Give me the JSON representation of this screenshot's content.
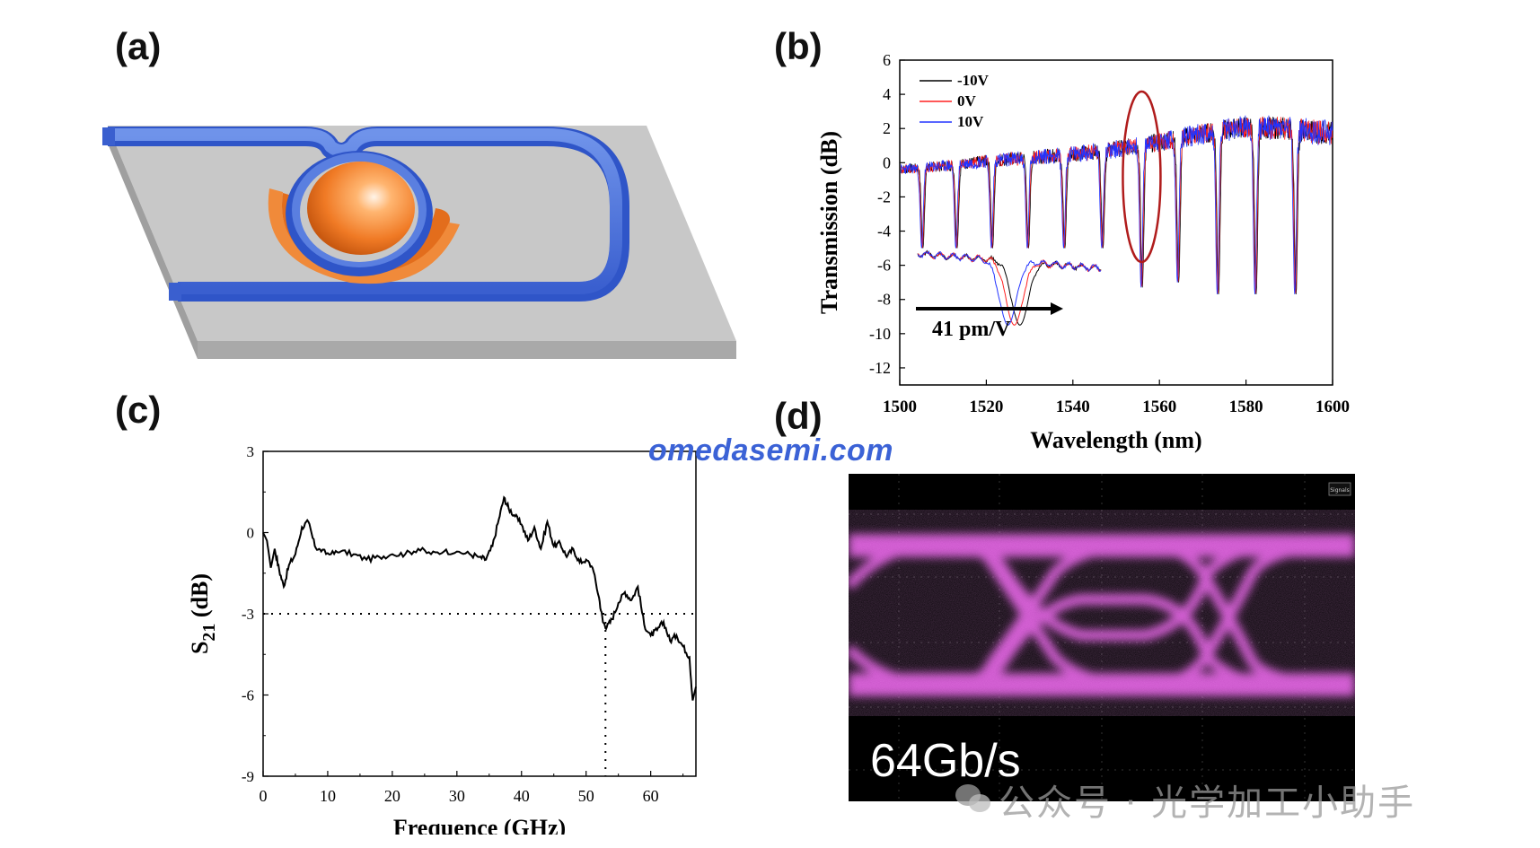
{
  "labels": {
    "a": "(a)",
    "b": "(b)",
    "c": "(c)",
    "d": "(d)"
  },
  "watermark": {
    "url": "omedasemi.com",
    "wechat_text": "公众号 · 光学加工小助手"
  },
  "panel_b": {
    "chart_data": {
      "type": "line",
      "xlabel": "Wavelength (nm)",
      "ylabel": "Transmission (dB)",
      "xlim": [
        1500,
        1600
      ],
      "ylim": [
        -13,
        6
      ],
      "xticks": [
        1500,
        1520,
        1540,
        1560,
        1580,
        1600
      ],
      "yticks": [
        6,
        4,
        2,
        0,
        -2,
        -4,
        -6,
        -8,
        -10,
        -12
      ],
      "series": [
        {
          "name": "-10V",
          "color": "#000000"
        },
        {
          "name": "0V",
          "color": "#ff2020"
        },
        {
          "name": "10V",
          "color": "#2233ff"
        }
      ],
      "resonance_dips_nm": [
        1505.2,
        1513.1,
        1521.3,
        1529.6,
        1538.0,
        1546.8,
        1555.9,
        1564.3,
        1573.5,
        1582.2,
        1591.4
      ],
      "dip_depth_db": [
        -5.0,
        -5.0,
        -5.0,
        -5.0,
        -5.0,
        -5.0,
        -7.3,
        -7.0,
        -7.7,
        -7.7,
        -7.7
      ],
      "baseline_db": [
        -0.4,
        -0.2,
        0.1,
        0.3,
        0.5,
        0.8,
        1.2,
        1.7,
        2.1,
        2.0,
        1.7
      ],
      "inset_annotation": "41 pm/V",
      "highlight_ellipse_center_nm": 1555.9
    }
  },
  "panel_c": {
    "chart_data": {
      "type": "line",
      "xlabel": "Frequence (GHz)",
      "ylabel_main": "S",
      "ylabel_sub": "21",
      "ylabel_unit": " (dB)",
      "xlim": [
        0,
        67
      ],
      "ylim": [
        -9,
        3
      ],
      "xticks": [
        0,
        10,
        20,
        30,
        40,
        50,
        60
      ],
      "yticks": [
        3,
        0,
        -3,
        -6,
        -9
      ],
      "cutoff_ghz": 53,
      "cutoff_db": -3,
      "x": [
        0,
        0.6,
        1.2,
        1.8,
        2.5,
        3.2,
        4.0,
        5.0,
        6.0,
        7.0,
        8.0,
        9.0,
        10.5,
        12,
        14,
        16,
        18,
        20,
        22,
        24,
        26,
        28,
        30,
        32,
        33.5,
        34.5,
        35.5,
        36.5,
        37.3,
        38.0,
        39.0,
        40.0,
        41.0,
        42.0,
        43.0,
        44.0,
        45.0,
        46.0,
        47.0,
        48.0,
        49.0,
        50.0,
        51.0,
        52.0,
        52.6,
        53.2,
        54.0,
        55.0,
        56.0,
        57.0,
        58.0,
        59.0,
        60.0,
        61.0,
        62.0,
        63.0,
        64.0,
        65.0,
        66.0,
        66.5,
        67.0
      ],
      "y": [
        0.0,
        -0.3,
        -1.3,
        -0.6,
        -1.4,
        -2.0,
        -1.2,
        -0.8,
        0.2,
        0.4,
        -0.5,
        -0.7,
        -0.8,
        -0.7,
        -0.8,
        -1.0,
        -0.9,
        -0.8,
        -0.8,
        -0.6,
        -0.8,
        -0.7,
        -0.7,
        -0.8,
        -0.9,
        -1.0,
        -0.5,
        0.5,
        1.3,
        0.9,
        0.6,
        0.3,
        -0.3,
        0.2,
        -0.6,
        0.4,
        -0.5,
        -0.4,
        -0.9,
        -0.6,
        -1.1,
        -1.0,
        -1.3,
        -2.4,
        -3.3,
        -3.5,
        -3.2,
        -2.6,
        -2.2,
        -2.5,
        -2.0,
        -3.4,
        -3.8,
        -3.6,
        -3.3,
        -4.0,
        -3.8,
        -4.2,
        -4.6,
        -6.2,
        -5.7
      ]
    }
  },
  "panel_d": {
    "rate_label": "64Gb/s",
    "scope_tag": "Signals"
  }
}
